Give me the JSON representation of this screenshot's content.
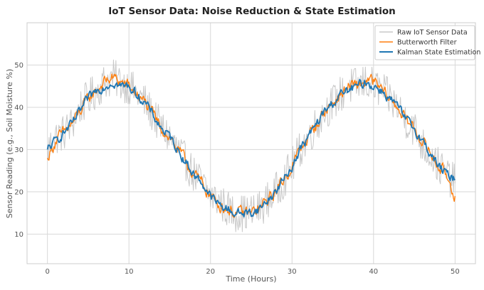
{
  "chart_data": {
    "type": "line",
    "title": "IoT Sensor Data: Noise Reduction & State Estimation",
    "xlabel": "Time (Hours)",
    "ylabel": "Sensor Reading (e.g., Soil Moisture %)",
    "xlim": [
      -2.5,
      52.5
    ],
    "ylim": [
      3,
      60
    ],
    "xticks": [
      0,
      10,
      20,
      30,
      40,
      50
    ],
    "yticks": [
      10,
      20,
      30,
      40,
      50
    ],
    "grid": true,
    "legend_position": "top-right",
    "colors": {
      "raw": "#c8c8c8",
      "butterworth": "#ff7f0e",
      "kalman": "#1f77b4"
    },
    "series": [
      {
        "name": "Raw IoT Sensor Data",
        "model": "noisy",
        "x": [
          0,
          1,
          2,
          3,
          4,
          5,
          6,
          7,
          8,
          9,
          10,
          11,
          12,
          13,
          14,
          15,
          16,
          17,
          18,
          19,
          20,
          21,
          22,
          23,
          24,
          25,
          26,
          27,
          28,
          29,
          30,
          31,
          32,
          33,
          34,
          35,
          36,
          37,
          38,
          39,
          40,
          41,
          42,
          43,
          44,
          45,
          46,
          47,
          48,
          49,
          50
        ],
        "values": [
          30,
          33,
          34,
          36,
          40,
          42,
          44,
          46,
          47,
          46,
          45,
          43,
          41,
          38,
          35,
          33,
          30,
          27,
          24,
          22,
          19,
          18,
          16,
          15,
          15,
          15,
          16,
          18,
          20,
          23,
          26,
          30,
          33,
          36,
          39,
          41,
          43,
          45,
          45,
          46,
          45,
          44,
          42,
          40,
          37,
          35,
          31,
          29,
          26,
          24,
          22
        ],
        "noise_amplitude": 4.5
      },
      {
        "name": "Butterworth Filter",
        "model": "smooth",
        "x": [
          0,
          1,
          2,
          3,
          4,
          5,
          6,
          7,
          8,
          9,
          10,
          11,
          12,
          13,
          14,
          15,
          16,
          17,
          18,
          19,
          20,
          21,
          22,
          23,
          24,
          25,
          26,
          27,
          28,
          29,
          30,
          31,
          32,
          33,
          34,
          35,
          36,
          37,
          38,
          39,
          40,
          41,
          42,
          43,
          44,
          45,
          46,
          47,
          48,
          49,
          50
        ],
        "values": [
          28,
          32,
          34,
          36,
          39,
          42,
          44,
          46,
          47,
          46,
          45,
          43,
          41,
          38,
          35,
          33,
          30,
          27,
          24,
          22,
          19,
          17,
          16,
          15,
          15,
          15,
          16,
          18,
          20,
          23,
          26,
          30,
          33,
          36,
          39,
          41,
          43,
          45,
          45,
          46,
          46,
          44,
          42,
          40,
          37,
          35,
          32,
          29,
          26,
          24,
          19
        ],
        "noise_amplitude": 1.2
      },
      {
        "name": "Kalman State Estimation",
        "model": "smooth",
        "x": [
          0,
          1,
          2,
          3,
          4,
          5,
          6,
          7,
          8,
          9,
          10,
          11,
          12,
          13,
          14,
          15,
          16,
          17,
          18,
          19,
          20,
          21,
          22,
          23,
          24,
          25,
          26,
          27,
          28,
          29,
          30,
          31,
          32,
          33,
          34,
          35,
          36,
          37,
          38,
          39,
          40,
          41,
          42,
          43,
          44,
          45,
          46,
          47,
          48,
          49,
          50
        ],
        "values": [
          30,
          32,
          34,
          36,
          39,
          42,
          44,
          45,
          46,
          45,
          45,
          43,
          41,
          38,
          35,
          33,
          30,
          27,
          24,
          22,
          19,
          17,
          16,
          15,
          15,
          15,
          16,
          18,
          20,
          23,
          26,
          30,
          33,
          36,
          39,
          41,
          43,
          44,
          45,
          46,
          45,
          44,
          42,
          40,
          37,
          35,
          32,
          29,
          26,
          24,
          23
        ],
        "noise_amplitude": 0.9
      }
    ]
  }
}
